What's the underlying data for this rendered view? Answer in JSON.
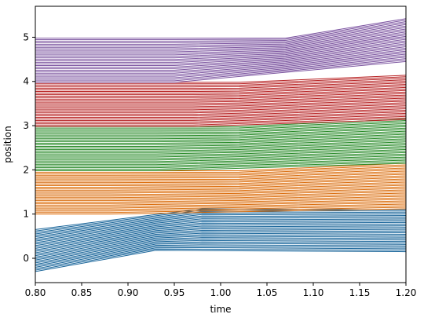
{
  "chart_data": {
    "type": "line",
    "title": "",
    "xlabel": "time",
    "ylabel": "position",
    "xlim": [
      0.8,
      1.2
    ],
    "ylim": [
      -0.55,
      5.7
    ],
    "x_ticks": [
      "0.80",
      "0.85",
      "0.90",
      "0.95",
      "1.00",
      "1.05",
      "1.10",
      "1.15",
      "1.20"
    ],
    "y_ticks": [
      "0",
      "1",
      "2",
      "3",
      "4",
      "5"
    ],
    "grid": false,
    "legend": "none",
    "lines_per_band": 30,
    "bands": [
      {
        "color": "#1f77b4",
        "lowest_line": {
          "x": [
            0.8,
            0.93,
            1.2
          ],
          "y": [
            -0.3,
            0.18,
            0.15
          ]
        },
        "highest_line": {
          "x": [
            0.8,
            0.98,
            1.2
          ],
          "y": [
            0.65,
            1.12,
            1.1
          ]
        }
      },
      {
        "color": "#ff7f0e",
        "lowest_line": {
          "x": [
            0.8,
            0.88,
            1.2
          ],
          "y": [
            1.0,
            1.0,
            1.12
          ]
        },
        "highest_line": {
          "x": [
            0.8,
            1.02,
            1.2
          ],
          "y": [
            1.98,
            1.98,
            2.15
          ]
        }
      },
      {
        "color": "#2ca02c",
        "lowest_line": {
          "x": [
            0.8,
            0.93,
            1.2
          ],
          "y": [
            1.98,
            1.98,
            2.15
          ]
        },
        "highest_line": {
          "x": [
            0.8,
            1.02,
            1.2
          ],
          "y": [
            2.98,
            2.98,
            3.15
          ]
        }
      },
      {
        "color": "#d62728",
        "lowest_line": {
          "x": [
            0.8,
            0.97,
            1.2
          ],
          "y": [
            2.98,
            2.98,
            3.14
          ]
        },
        "highest_line": {
          "x": [
            0.8,
            1.02,
            1.2
          ],
          "y": [
            3.98,
            3.98,
            4.14
          ]
        }
      },
      {
        "color": "#9467bd",
        "lowest_line": {
          "x": [
            0.8,
            0.95,
            1.2
          ],
          "y": [
            3.98,
            3.98,
            4.45
          ]
        },
        "highest_line": {
          "x": [
            0.8,
            1.07,
            1.2
          ],
          "y": [
            4.98,
            4.98,
            5.42
          ]
        }
      }
    ]
  }
}
